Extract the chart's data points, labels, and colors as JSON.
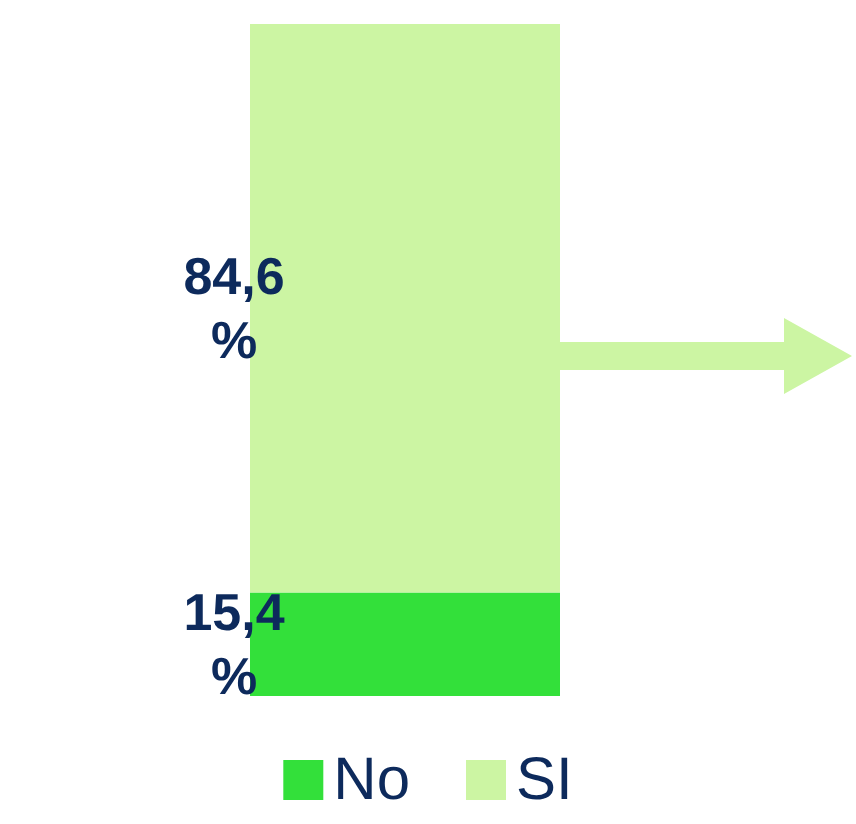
{
  "chart_data": {
    "type": "bar",
    "stacked": true,
    "categories": [
      null
    ],
    "tick_labels": false,
    "legend": "bottom",
    "series": [
      {
        "name": "No",
        "color": "#33e03a",
        "values": [
          15.4
        ],
        "value_labels": [
          "15,4 %"
        ]
      },
      {
        "name": "SI",
        "color": "#ccf5a3",
        "values": [
          84.6
        ],
        "value_labels": [
          "84,6 %"
        ]
      }
    ]
  }
}
